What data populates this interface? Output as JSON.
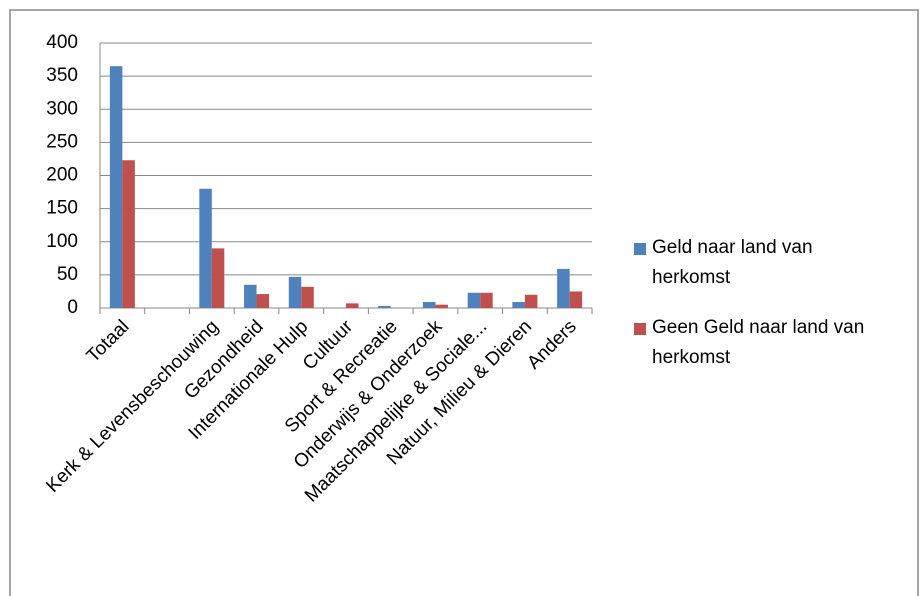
{
  "chart_data": {
    "type": "bar",
    "categories": [
      "Totaal",
      null,
      "Kerk & Levensbeschouwing",
      "Gezondheid",
      "Internationale Hulp",
      "Cultuur",
      "Sport & Recreatie",
      "Onderwijs & Onderzoek",
      "Maatschappelijke & Sociale...",
      "Natuur, Milieu & Dieren",
      "Anders"
    ],
    "series": [
      {
        "name": "Geld naar land van herkomst",
        "color": "#4f81bd",
        "values": [
          365,
          null,
          180,
          35,
          47,
          0,
          3,
          9,
          23,
          9,
          59
        ]
      },
      {
        "name": "Geen Geld naar land van herkomst",
        "color": "#c0504d",
        "values": [
          223,
          null,
          90,
          21,
          32,
          7,
          0,
          5,
          23,
          20,
          25
        ]
      }
    ],
    "ylim": [
      0,
      400
    ],
    "yticks": [
      0,
      50,
      100,
      150,
      200,
      250,
      300,
      350,
      400
    ],
    "grid": true,
    "legend": "right"
  }
}
